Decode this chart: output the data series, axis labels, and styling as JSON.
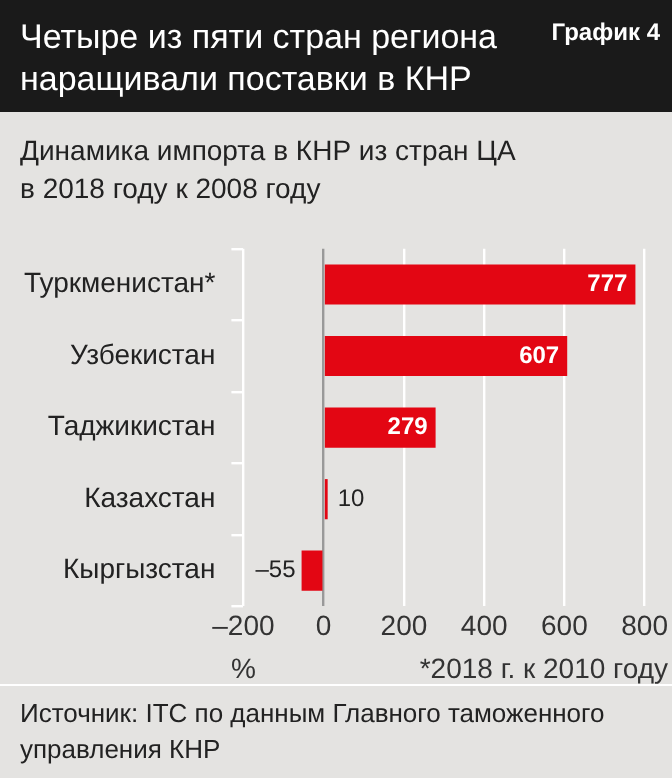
{
  "chart_data": {
    "type": "bar",
    "orientation": "horizontal",
    "title": "Четыре из пяти стран региона наращивали поставки в КНР",
    "subtitle": "Динамика импорта в КНР из стран ЦА в 2018 году к 2008 году",
    "categories": [
      "Туркменистан*",
      "Узбекистан",
      "Таджикистан",
      "Казахстан",
      "Кыргызстан"
    ],
    "values": [
      777,
      607,
      279,
      10,
      -55
    ],
    "color": "#e30613",
    "xlim": [
      -200,
      800
    ],
    "xticks": [
      {
        "value": -200,
        "label": "–200"
      },
      0,
      200,
      400,
      600,
      800
    ],
    "xlabel": "%",
    "value_labels": [
      "777",
      "607",
      "279",
      "10",
      "–55"
    ],
    "grid": "x",
    "annotations": [
      "График 4",
      "*2018 г. к 2010 году",
      "Источник: ITC по данным Главного таможенного управления КНР"
    ]
  }
}
